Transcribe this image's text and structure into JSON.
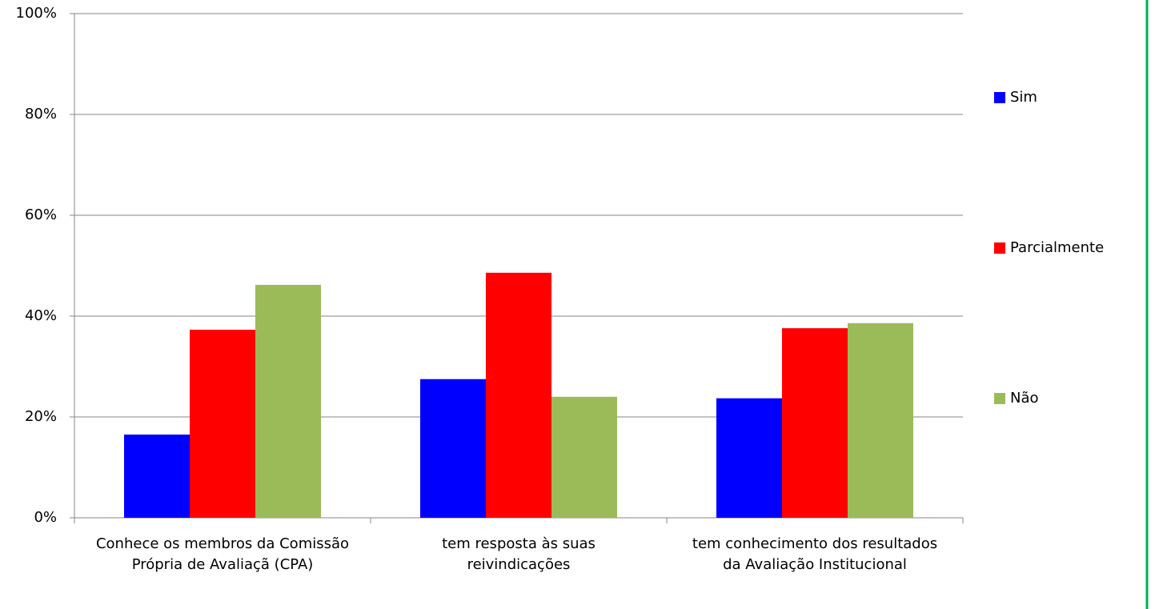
{
  "chart_data": {
    "type": "bar",
    "categories": [
      "Conhece os membros da Comissão Própria de Avaliaçã (CPA)",
      "tem resposta às suas reivindicações",
      "tem conhecimento dos resultados da Avaliação Institucional"
    ],
    "series": [
      {
        "name": "Sim",
        "color": "#0000ff",
        "values": [
          16.5,
          27.5,
          23.7
        ]
      },
      {
        "name": "Parcialmente",
        "color": "#ff0000",
        "values": [
          37.3,
          48.6,
          37.6
        ]
      },
      {
        "name": "Não",
        "color": "#9bbb59",
        "values": [
          46.2,
          24.0,
          38.6
        ]
      }
    ],
    "ylim": [
      0,
      100
    ],
    "yticks": [
      {
        "value": 0,
        "label": "0%"
      },
      {
        "value": 20,
        "label": "20%"
      },
      {
        "value": 40,
        "label": "40%"
      },
      {
        "value": 60,
        "label": "60%"
      },
      {
        "value": 80,
        "label": "80%"
      },
      {
        "value": 100,
        "label": "100%"
      }
    ],
    "grid": true,
    "legend": "right"
  }
}
